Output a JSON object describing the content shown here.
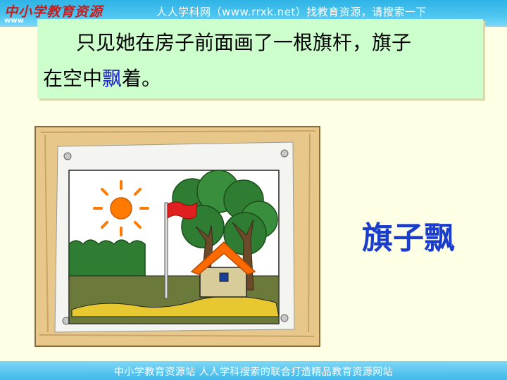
{
  "header": {
    "logo_text": "中小学教育资源",
    "logo_sub": "www",
    "banner": "人人学科网（www.rrxk.net）找教育资源，请搜索一下"
  },
  "lesson": {
    "line1": "只见她在房子前面画了一根旗杆，旗子",
    "line2_before": "在空中",
    "line2_highlight": "飘",
    "line2_after": "着。"
  },
  "side_word": "旗子飘",
  "picture": {
    "frame_color": "#e8c88a",
    "sky_color": "#ffffff",
    "grass_color": "#6b7a3a",
    "sun_color": "#ff7a00",
    "flag_color": "#e02020",
    "roof_color": "#ff6a00",
    "wall_color": "#d8cc9a",
    "door_color": "#1a3d99",
    "tree_color": "#2e7d32"
  },
  "footer": {
    "text": "中小学教育资源站 人人学科搜索的联合打造精品教育资源网站"
  }
}
